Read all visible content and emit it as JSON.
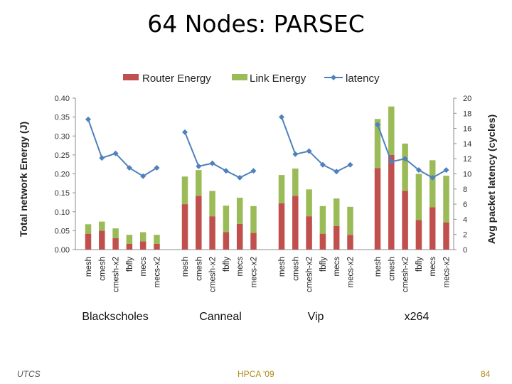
{
  "slide": {
    "title": "64 Nodes: PARSEC",
    "footer_left": "UTCS",
    "footer_center": "HPCA '09",
    "footer_right": "84"
  },
  "chart_data": {
    "type": "bar",
    "stacked": true,
    "title": "",
    "ylabel": "Total network Energy (J)",
    "y2label": "Avg packet latency (cycles)",
    "ylim": [
      0,
      0.4
    ],
    "y2lim": [
      0,
      20
    ],
    "yticks": [
      "0.00",
      "0.05",
      "0.10",
      "0.15",
      "0.20",
      "0.25",
      "0.30",
      "0.35",
      "0.40"
    ],
    "y2ticks": [
      "0",
      "2",
      "4",
      "6",
      "8",
      "10",
      "12",
      "14",
      "16",
      "18",
      "20"
    ],
    "legend_position": "top",
    "grid": false,
    "colors": {
      "router": "#c0504d",
      "link": "#9bbb59",
      "latency": "#4f81bd"
    },
    "groups": [
      {
        "name": "Blackscholes",
        "categories": [
          "mesh",
          "cmesh",
          "cmesh-x2",
          "fbfly",
          "mecs",
          "mecs-x2"
        ]
      },
      {
        "name": "Canneal",
        "categories": [
          "mesh",
          "cmesh",
          "cmesh-x2",
          "fbfly",
          "mecs",
          "mecs-x2"
        ]
      },
      {
        "name": "Vip",
        "categories": [
          "mesh",
          "cmesh",
          "cmesh-x2",
          "fbfly",
          "mecs",
          "mecs-x2"
        ]
      },
      {
        "name": "x264",
        "categories": [
          "mesh",
          "cmesh",
          "cmesh-x2",
          "fbfly",
          "mecs",
          "mecs-x2"
        ]
      }
    ],
    "series": [
      {
        "name": "Router Energy",
        "type": "bar",
        "axis": "left",
        "values": [
          0.042,
          0.05,
          0.03,
          0.015,
          0.022,
          0.015,
          0.12,
          0.142,
          0.088,
          0.046,
          0.068,
          0.044,
          0.122,
          0.142,
          0.088,
          0.042,
          0.062,
          0.039,
          0.215,
          0.25,
          0.155,
          0.078,
          0.112,
          0.072
        ]
      },
      {
        "name": "Link Energy",
        "type": "bar",
        "axis": "left",
        "values": [
          0.025,
          0.024,
          0.026,
          0.024,
          0.024,
          0.024,
          0.073,
          0.068,
          0.067,
          0.07,
          0.069,
          0.071,
          0.075,
          0.072,
          0.071,
          0.073,
          0.073,
          0.074,
          0.13,
          0.128,
          0.125,
          0.122,
          0.124,
          0.123
        ]
      },
      {
        "name": "latency",
        "type": "line",
        "axis": "right",
        "values": [
          17.2,
          12.1,
          12.7,
          10.8,
          9.7,
          10.8,
          15.5,
          11.0,
          11.4,
          10.4,
          9.5,
          10.4,
          17.5,
          12.6,
          13.0,
          11.2,
          10.3,
          11.2,
          16.5,
          11.6,
          12.0,
          10.5,
          9.5,
          10.5
        ]
      }
    ]
  }
}
